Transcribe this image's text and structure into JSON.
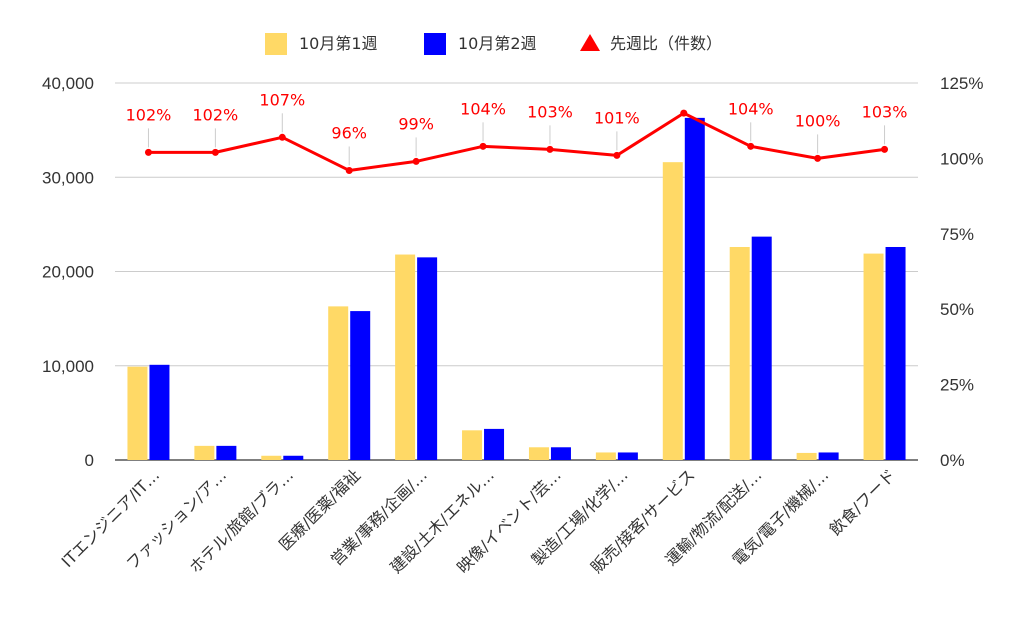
{
  "chart_data": {
    "type": "bar",
    "title": "",
    "xlabel": "",
    "ylabel": "",
    "categories": [
      "ITエンジニア/IT…",
      "ファッション/ア…",
      "ホテル/旅館/ブラ…",
      "医療/医薬/福祉",
      "営業/事務/企画/…",
      "建設/土木/エネル…",
      "映像/イベント/芸…",
      "製造/工場/化学/…",
      "販売/接客/サービス",
      "運輸/物流/配送/…",
      "電気/電子/機械/…",
      "飲食/フード"
    ],
    "series": [
      {
        "name": "10月第1週",
        "type": "bar",
        "axis": "left",
        "color": "#FFD966",
        "values": [
          9900,
          1500,
          450,
          16300,
          21800,
          3150,
          1350,
          800,
          31600,
          22600,
          750,
          21900
        ]
      },
      {
        "name": "10月第2週",
        "type": "bar",
        "axis": "left",
        "color": "#0000FF",
        "values": [
          10100,
          1500,
          450,
          15800,
          21500,
          3300,
          1350,
          800,
          36300,
          23700,
          800,
          22600
        ]
      },
      {
        "name": "先週比（件数）",
        "type": "line",
        "axis": "right",
        "color": "#FF0000",
        "values": [
          102,
          102,
          107,
          96,
          99,
          104,
          103,
          101,
          115,
          104,
          100,
          103
        ],
        "labels": [
          "102%",
          "102%",
          "107%",
          "96%",
          "99%",
          "104%",
          "103%",
          "101%",
          "",
          "104%",
          "100%",
          "103%"
        ]
      }
    ],
    "y_left": {
      "min": 0,
      "max": 40000,
      "ticks": [
        "0",
        "10,000",
        "20,000",
        "30,000",
        "40,000"
      ],
      "values": [
        0,
        10000,
        20000,
        30000,
        40000
      ]
    },
    "y_right": {
      "min": 0,
      "max": 125,
      "ticks": [
        "0%",
        "25%",
        "50%",
        "75%",
        "100%",
        "125%"
      ],
      "values": [
        0,
        25,
        50,
        75,
        100,
        125
      ]
    },
    "grid": true,
    "legend_position": "top"
  }
}
